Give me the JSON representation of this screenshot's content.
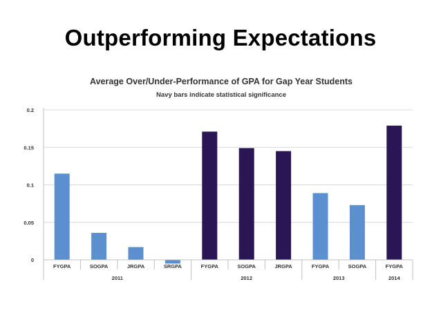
{
  "slide": {
    "title": "Outperforming Expectations"
  },
  "colors": {
    "significant": "#2a1655",
    "not_significant": "#5b8fcf",
    "grid": "#d9d9d9",
    "axis": "#bfbfbf"
  },
  "chart_data": {
    "type": "bar",
    "title": "Average Over/Under-Performance of GPA for Gap Year Students",
    "subtitle": "Navy bars indicate statistical significance",
    "ylim": [
      -0.01,
      0.2
    ],
    "yticks": [
      "0",
      "0.05",
      "0.1",
      "0.15",
      "0.2"
    ],
    "grid": true,
    "legend": "none",
    "categories": [
      "FYGPA",
      "SOGPA",
      "JRGPA",
      "SRGPA",
      "FYGPA",
      "SOGPA",
      "JRGPA",
      "FYGPA",
      "SOGPA",
      "FYGPA"
    ],
    "values": [
      0.115,
      0.036,
      0.017,
      -0.005,
      0.171,
      0.149,
      0.145,
      0.089,
      0.073,
      0.179
    ],
    "significant": [
      false,
      false,
      false,
      false,
      true,
      true,
      true,
      false,
      false,
      true
    ],
    "groups": [
      {
        "label": "2011",
        "categories": 4
      },
      {
        "label": "2012",
        "categories": 3
      },
      {
        "label": "2013",
        "categories": 2
      },
      {
        "label": "2014",
        "categories": 1
      }
    ]
  }
}
